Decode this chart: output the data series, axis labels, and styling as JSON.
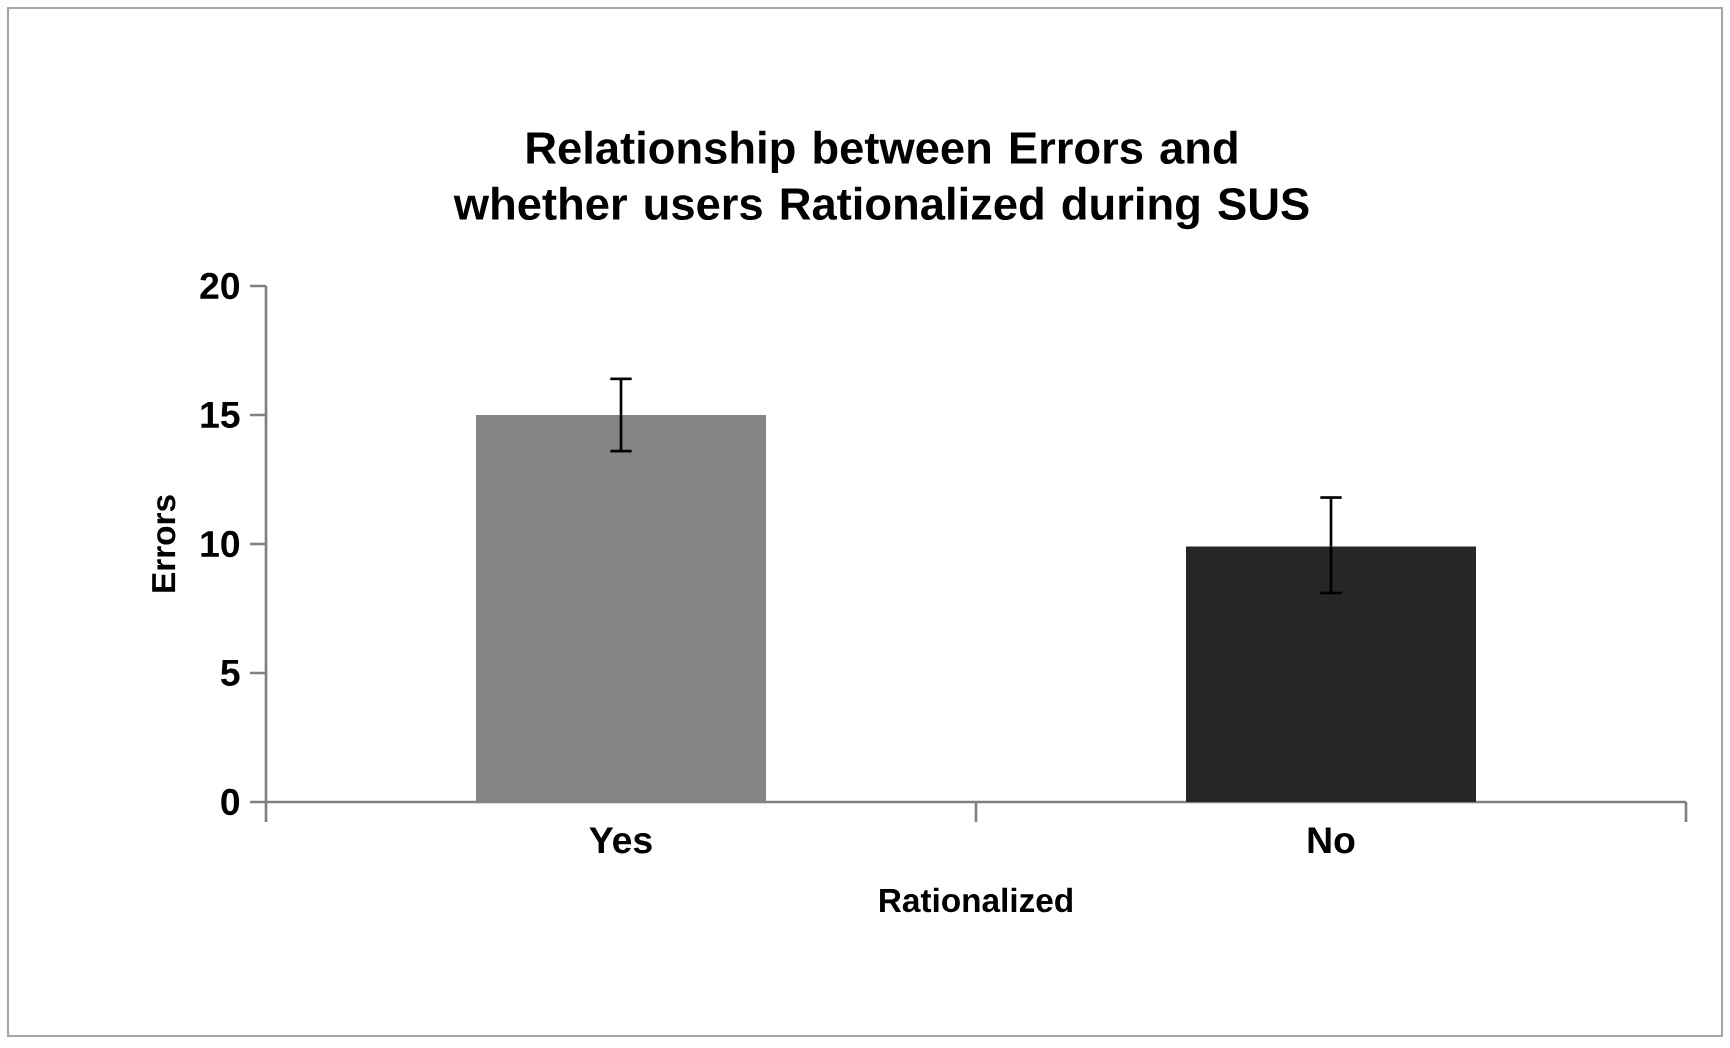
{
  "chart_data": {
    "type": "bar",
    "title": "Relationship between Errors and whether users Rationalized during SUS",
    "xlabel": "Rationalized",
    "ylabel": "Errors",
    "categories": [
      "Yes",
      "No"
    ],
    "values": [
      15,
      9.9
    ],
    "colors": [
      "#858585",
      "#262626"
    ],
    "errors": [
      [
        13.6,
        16.4
      ],
      [
        8.1,
        11.8
      ]
    ],
    "ylim": [
      0,
      20
    ],
    "yticks": [
      0,
      5,
      10,
      15,
      20
    ]
  }
}
